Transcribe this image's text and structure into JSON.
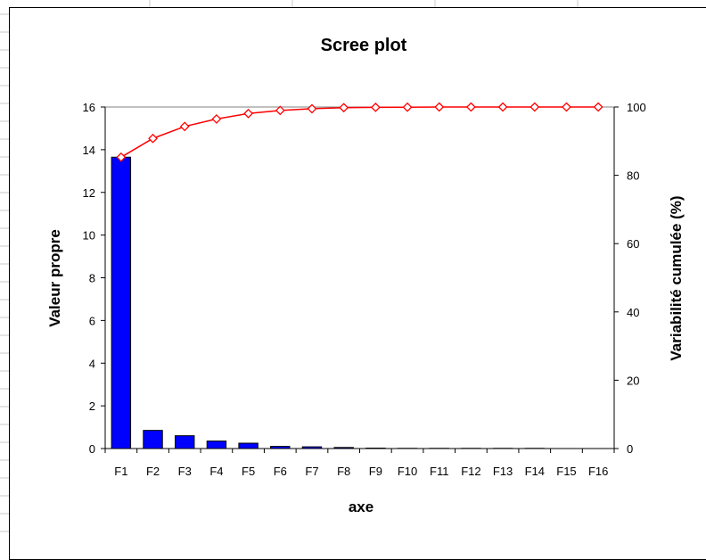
{
  "chart_data": {
    "type": "bar",
    "title": "Scree plot",
    "xlabel": "axe",
    "ylabel": "Valeur propre",
    "y2label": "Variabilité cumulée (%)",
    "categories": [
      "F1",
      "F2",
      "F3",
      "F4",
      "F5",
      "F6",
      "F7",
      "F8",
      "F9",
      "F10",
      "F11",
      "F12",
      "F13",
      "F14",
      "F15",
      "F16"
    ],
    "ylim": [
      0,
      16
    ],
    "yticks": [
      0,
      2,
      4,
      6,
      8,
      10,
      12,
      14,
      16
    ],
    "y2lim": [
      0,
      100
    ],
    "y2ticks": [
      0,
      20,
      40,
      60,
      80,
      100
    ],
    "grid": false,
    "series": [
      {
        "type": "bar",
        "axis": "left",
        "values": [
          13.65,
          0.85,
          0.6,
          0.35,
          0.25,
          0.1,
          0.08,
          0.05,
          0.02,
          0.01,
          0.01,
          0.01,
          0.01,
          0.01,
          0.0,
          0.0
        ],
        "color": "#0000ff"
      },
      {
        "type": "line",
        "axis": "right",
        "values": [
          85.3,
          90.8,
          94.3,
          96.5,
          98.1,
          99.0,
          99.5,
          99.8,
          99.9,
          99.95,
          100,
          100,
          100,
          100,
          100,
          100
        ],
        "color": "#ff0000"
      }
    ]
  }
}
